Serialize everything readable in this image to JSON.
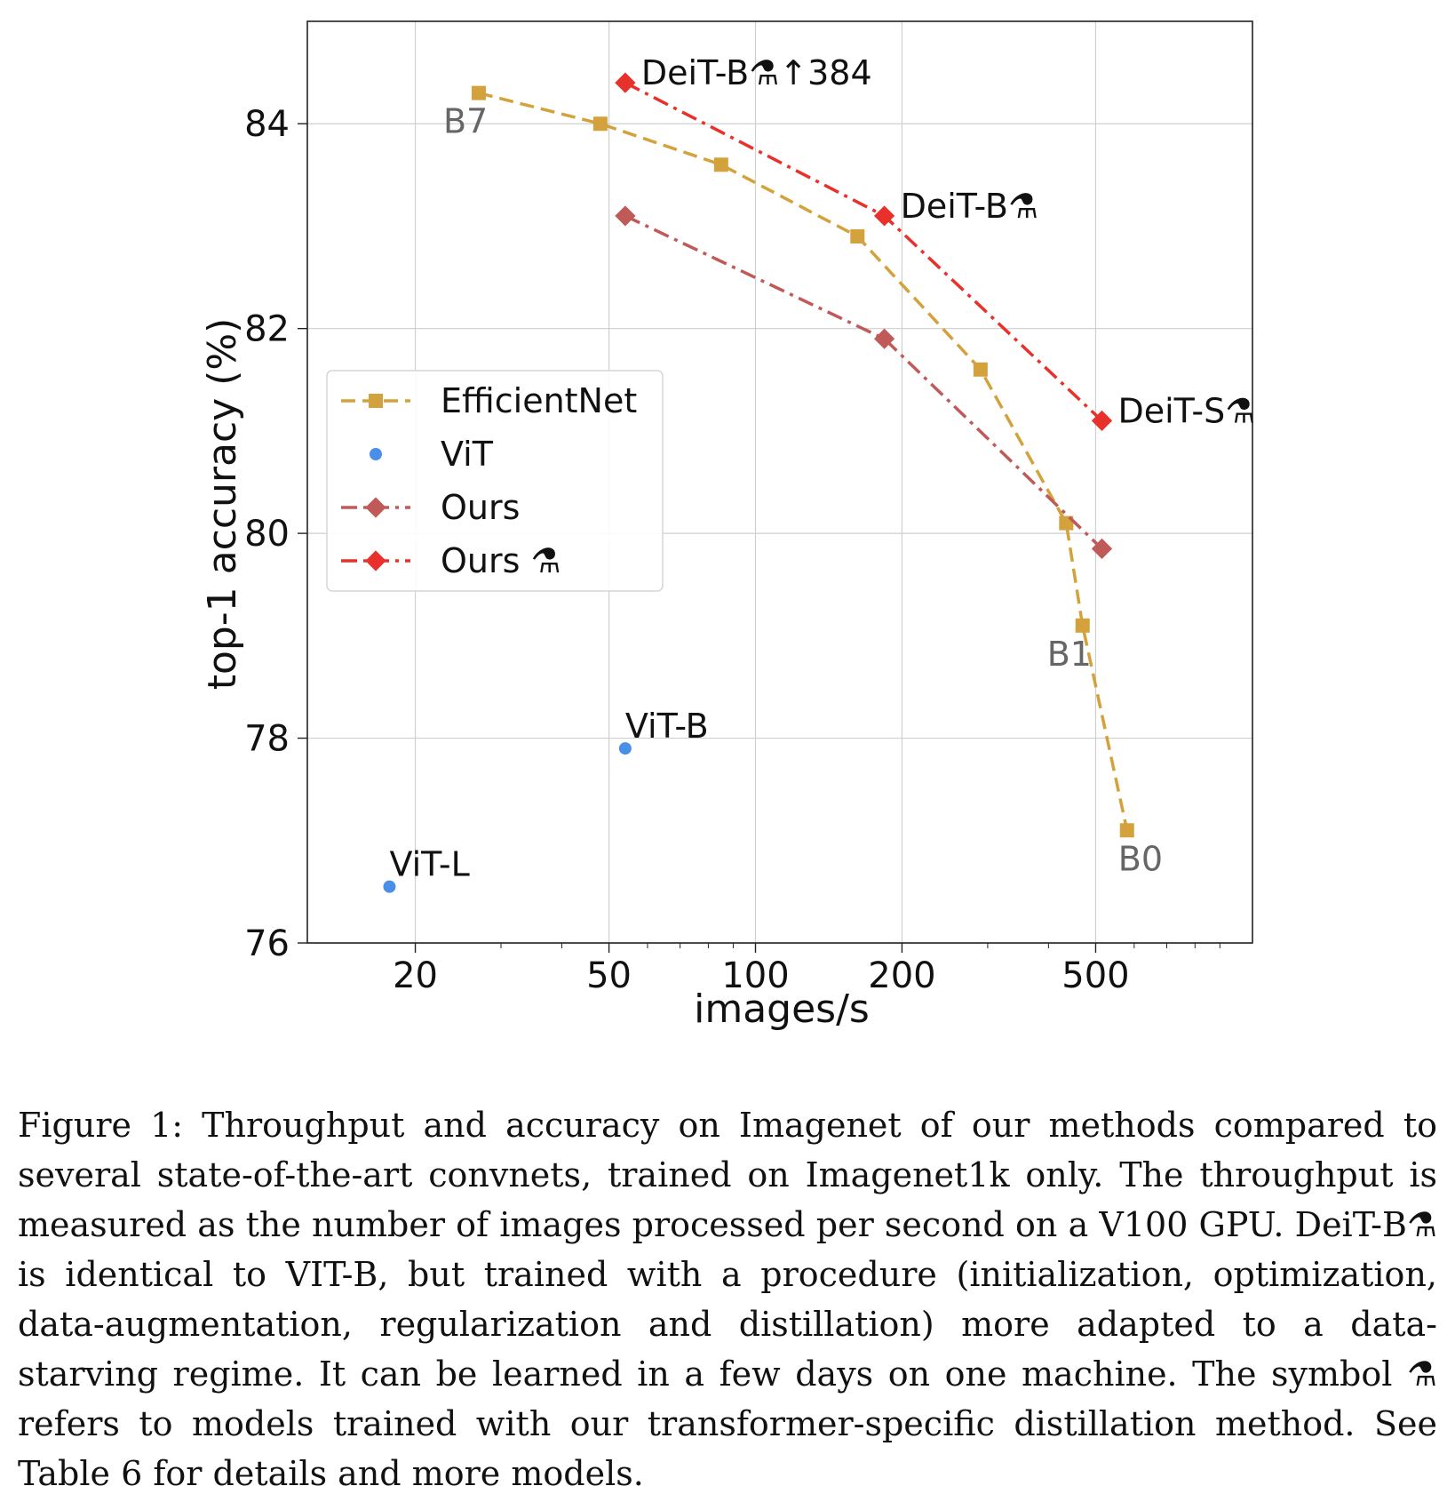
{
  "chart_data": {
    "type": "line",
    "xlabel": "images/s",
    "ylabel": "top-1 accuracy (%)",
    "xscale": "log",
    "xlim": [
      12,
      1050
    ],
    "ylim": [
      76,
      85
    ],
    "xticks": [
      20,
      50,
      100,
      200,
      500
    ],
    "xtick_labels": [
      "20",
      "50",
      "100",
      "200",
      "500"
    ],
    "yticks": [
      76,
      78,
      80,
      82,
      84
    ],
    "ytick_labels": [
      "76",
      "78",
      "80",
      "82",
      "84"
    ],
    "grid": true,
    "legend_position": "center-left",
    "series": [
      {
        "name": "EfficientNet",
        "color": "#D4A23C",
        "marker": "square",
        "linestyle": "dashed",
        "x": [
          27,
          48,
          85,
          162,
          290,
          435,
          470,
          580
        ],
        "y": [
          84.3,
          84.0,
          83.6,
          82.9,
          81.6,
          80.1,
          79.1,
          77.1
        ]
      },
      {
        "name": "ViT",
        "color": "#4A8FE7",
        "marker": "circle",
        "linestyle": "none",
        "x": [
          17.7,
          54
        ],
        "y": [
          76.55,
          77.9
        ]
      },
      {
        "name": "Ours",
        "color": "#C05A58",
        "marker": "diamond",
        "linestyle": "dashdot",
        "x": [
          54,
          184,
          515
        ],
        "y": [
          83.1,
          81.9,
          79.85
        ]
      },
      {
        "name": "Ours ⚗",
        "color": "#E8312A",
        "marker": "diamond",
        "linestyle": "dashdot",
        "x": [
          54,
          184,
          515
        ],
        "y": [
          84.4,
          83.1,
          81.1
        ]
      }
    ],
    "annotations": [
      {
        "text": "DeiT-B⚗↑384",
        "x": 54,
        "y": 84.4,
        "color": "#111111",
        "anchor": "right"
      },
      {
        "text": "DeiT-B⚗",
        "x": 184,
        "y": 83.1,
        "color": "#111111",
        "anchor": "right"
      },
      {
        "text": "DeiT-S⚗",
        "x": 515,
        "y": 81.1,
        "color": "#111111",
        "anchor": "right"
      },
      {
        "text": "ViT-B",
        "x": 54,
        "y": 77.9,
        "color": "#111111",
        "anchor": "above"
      },
      {
        "text": "ViT-L",
        "x": 17.7,
        "y": 76.55,
        "color": "#111111",
        "anchor": "above"
      },
      {
        "text": "B7",
        "x": 27,
        "y": 84.3,
        "color": "#666666",
        "anchor": "below-left"
      },
      {
        "text": "B1",
        "x": 470,
        "y": 79.1,
        "color": "#666666",
        "anchor": "below-left"
      },
      {
        "text": "B0",
        "x": 580,
        "y": 77.1,
        "color": "#666666",
        "anchor": "below"
      }
    ]
  },
  "caption": "Figure 1: Throughput and accuracy on Imagenet of our methods compared to several state-of-the-art convnets, trained on Imagenet1k only. The throughput is measured as the number of images processed per second on a V100 GPU. DeiT-B⚗ is identical to VIT-B, but trained with a procedure (initialization, optimization, data-augmentation, regularization and distillation) more adapted to a data-starving regime. It can be learned in a few days on one machine. The symbol ⚗ refers to models trained with our transformer-specific distillation method. See Table 6 for details and more models."
}
